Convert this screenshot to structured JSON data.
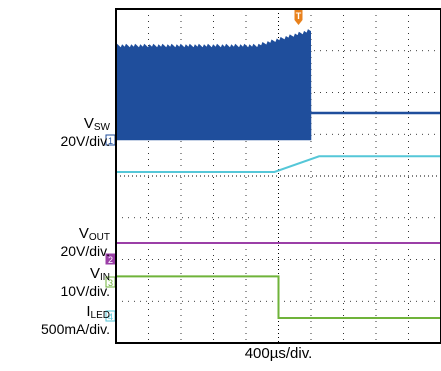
{
  "chart_data": {
    "type": "line",
    "x_unit": "µs",
    "xlim": [
      0,
      4000
    ],
    "time_per_div": "400µs/div.",
    "trigger_marker": "T",
    "channels": [
      {
        "id": "1",
        "name_base": "V",
        "name_sub": "SW",
        "scale": "20V/div.",
        "color": "#1f4e9c",
        "ground_marker": "1",
        "description_signal": "switching burst then steady",
        "points": [
          [
            0,
            1.0
          ],
          [
            2000,
            1.0
          ],
          [
            2200,
            1.0
          ],
          [
            2400,
            0.55
          ],
          [
            4000,
            0.55
          ]
        ]
      },
      {
        "id": "2",
        "name_base": "V",
        "name_sub": "OUT",
        "scale": "20V/div.",
        "color": "#9b3fa7",
        "ground_marker": "2",
        "points": [
          [
            0,
            2.2
          ],
          [
            4000,
            2.2
          ]
        ]
      },
      {
        "id": "3",
        "name_base": "V",
        "name_sub": "IN",
        "scale": "10V/div.",
        "color": "#6fb33a",
        "ground_marker": "3",
        "points": [
          [
            0,
            1.6
          ],
          [
            2000,
            1.6
          ],
          [
            2000,
            0.0
          ],
          [
            4000,
            0.0
          ]
        ]
      },
      {
        "id": "4",
        "name_base": "I",
        "name_sub": "LED",
        "scale": "500mA/div.",
        "color": "#55c7d8",
        "ground_marker": "4",
        "points": [
          [
            0,
            0.0
          ],
          [
            1950,
            0.0
          ],
          [
            2500,
            0.15
          ],
          [
            4000,
            0.15
          ]
        ]
      }
    ],
    "grid": true
  },
  "labels": {
    "vsw_base": "V",
    "vsw_sub": "SW",
    "vsw_scale": "20V/div.",
    "vout_base": "V",
    "vout_sub": "OUT",
    "vout_scale": "20V/div.",
    "vin_base": "V",
    "vin_sub": "IN",
    "vin_scale": "10V/div.",
    "iled_base": "I",
    "iled_sub": "LED",
    "iled_scale": "500mA/div.",
    "time_div": "400µs/div."
  }
}
